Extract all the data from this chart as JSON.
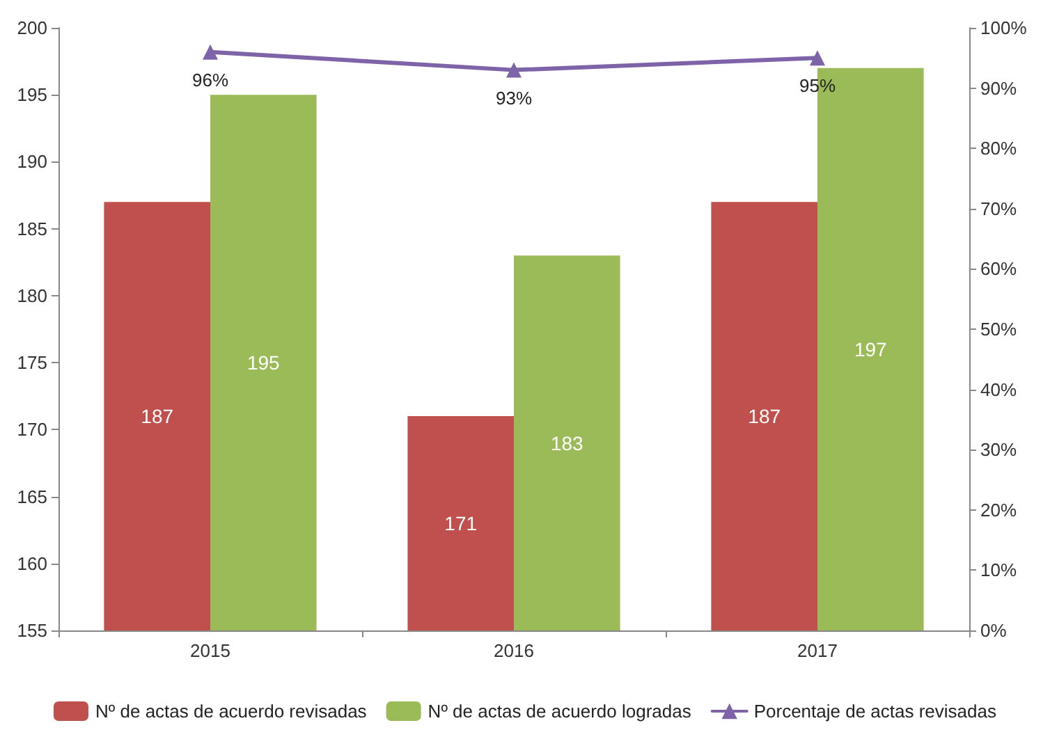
{
  "chart_data": {
    "type": "bar",
    "categories": [
      "2015",
      "2016",
      "2017"
    ],
    "series": [
      {
        "name": "Nº de actas de acuerdo revisadas",
        "color": "#c0504d",
        "values": [
          187,
          171,
          187
        ]
      },
      {
        "name": "Nº de actas de acuerdo logradas",
        "color": "#9bbb59",
        "values": [
          195,
          183,
          197
        ]
      },
      {
        "name": "Porcentaje de actas revisadas",
        "type": "line",
        "axis": "y2",
        "color": "#7f63a8",
        "values": [
          96,
          93,
          95
        ],
        "value_labels": [
          "96%",
          "93%",
          "95%"
        ],
        "marker": "triangle"
      }
    ],
    "ylim": [
      155,
      200
    ],
    "yticks": [
      155,
      160,
      165,
      170,
      175,
      180,
      185,
      190,
      195,
      200
    ],
    "y2lim": [
      0,
      100
    ],
    "y2ticks": [
      {
        "value": 0,
        "label": "0%"
      },
      {
        "value": 10,
        "label": "10%"
      },
      {
        "value": 20,
        "label": "20%"
      },
      {
        "value": 30,
        "label": "30%"
      },
      {
        "value": 40,
        "label": "40%"
      },
      {
        "value": 50,
        "label": "50%"
      },
      {
        "value": 60,
        "label": "60%"
      },
      {
        "value": 70,
        "label": "70%"
      },
      {
        "value": 80,
        "label": "80%"
      },
      {
        "value": 90,
        "label": "90%"
      },
      {
        "value": 100,
        "label": "100%"
      }
    ],
    "data_labels": true,
    "grid": false,
    "legend": "bottom"
  }
}
